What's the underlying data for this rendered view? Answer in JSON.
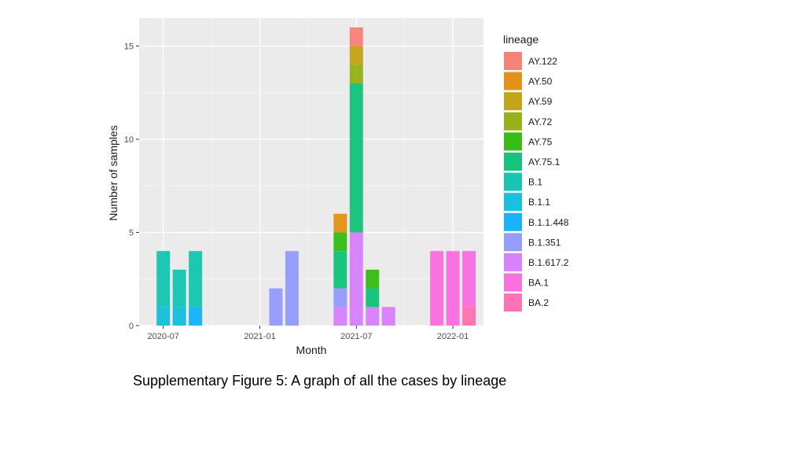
{
  "caption": "Supplementary Figure 5: A graph of all the cases by lineage",
  "chart_data": {
    "type": "bar",
    "stacked": true,
    "title": "",
    "xlabel": "Month",
    "ylabel": "Number of samples",
    "ylim": [
      0,
      16.5
    ],
    "yticks": [
      0,
      5,
      10,
      15
    ],
    "xticks": [
      {
        "label": "2020-07",
        "month_index": 0
      },
      {
        "label": "2021-01",
        "month_index": 6
      },
      {
        "label": "2021-07",
        "month_index": 12
      },
      {
        "label": "2022-01",
        "month_index": 18
      }
    ],
    "xlim_months": [
      -1.5,
      19.9
    ],
    "legend_title": "lineage",
    "legend_position": "right",
    "lineages": [
      {
        "name": "AY.122",
        "color": "#F8766D"
      },
      {
        "name": "AY.50",
        "color": "#E18A00"
      },
      {
        "name": "AY.59",
        "color": "#BE9C00"
      },
      {
        "name": "AY.72",
        "color": "#8CAB00"
      },
      {
        "name": "AY.75",
        "color": "#24B700"
      },
      {
        "name": "AY.75.1",
        "color": "#00BE70"
      },
      {
        "name": "B.1",
        "color": "#00C1AB"
      },
      {
        "name": "B.1.1",
        "color": "#00BBDA"
      },
      {
        "name": "B.1.1.448",
        "color": "#00ACFC"
      },
      {
        "name": "B.1.351",
        "color": "#8B93FF"
      },
      {
        "name": "B.1.617.2",
        "color": "#D575FE"
      },
      {
        "name": "BA.1",
        "color": "#F962DD"
      },
      {
        "name": "BA.2",
        "color": "#FF65AC"
      }
    ],
    "bars": [
      {
        "month": "2020-07",
        "month_index": 0,
        "stack": [
          {
            "lineage": "B.1.1",
            "value": 1
          },
          {
            "lineage": "B.1",
            "value": 3
          }
        ]
      },
      {
        "month": "2020-08",
        "month_index": 1,
        "stack": [
          {
            "lineage": "B.1.1",
            "value": 1
          },
          {
            "lineage": "B.1",
            "value": 2
          }
        ]
      },
      {
        "month": "2020-09",
        "month_index": 2,
        "stack": [
          {
            "lineage": "B.1.1.448",
            "value": 1
          },
          {
            "lineage": "B.1",
            "value": 3
          }
        ]
      },
      {
        "month": "2021-02",
        "month_index": 7,
        "stack": [
          {
            "lineage": "B.1.351",
            "value": 2
          }
        ]
      },
      {
        "month": "2021-03",
        "month_index": 8,
        "stack": [
          {
            "lineage": "B.1.351",
            "value": 4
          }
        ]
      },
      {
        "month": "2021-06",
        "month_index": 11,
        "stack": [
          {
            "lineage": "B.1.617.2",
            "value": 1
          },
          {
            "lineage": "B.1.351",
            "value": 1
          },
          {
            "lineage": "AY.75.1",
            "value": 2
          },
          {
            "lineage": "AY.75",
            "value": 1
          },
          {
            "lineage": "AY.50",
            "value": 1
          }
        ]
      },
      {
        "month": "2021-07",
        "month_index": 12,
        "stack": [
          {
            "lineage": "B.1.617.2",
            "value": 5
          },
          {
            "lineage": "AY.75.1",
            "value": 8
          },
          {
            "lineage": "AY.72",
            "value": 1
          },
          {
            "lineage": "AY.59",
            "value": 1
          },
          {
            "lineage": "AY.122",
            "value": 1
          }
        ]
      },
      {
        "month": "2021-08",
        "month_index": 13,
        "stack": [
          {
            "lineage": "B.1.617.2",
            "value": 1
          },
          {
            "lineage": "AY.75.1",
            "value": 1
          },
          {
            "lineage": "AY.75",
            "value": 1
          }
        ]
      },
      {
        "month": "2021-09",
        "month_index": 14,
        "stack": [
          {
            "lineage": "B.1.617.2",
            "value": 1
          }
        ]
      },
      {
        "month": "2021-12",
        "month_index": 17,
        "stack": [
          {
            "lineage": "BA.1",
            "value": 4
          }
        ]
      },
      {
        "month": "2022-01",
        "month_index": 18,
        "stack": [
          {
            "lineage": "BA.1",
            "value": 4
          }
        ]
      },
      {
        "month": "2022-02",
        "month_index": 19,
        "stack": [
          {
            "lineage": "BA.2",
            "value": 1
          },
          {
            "lineage": "BA.1",
            "value": 3
          }
        ]
      }
    ]
  }
}
